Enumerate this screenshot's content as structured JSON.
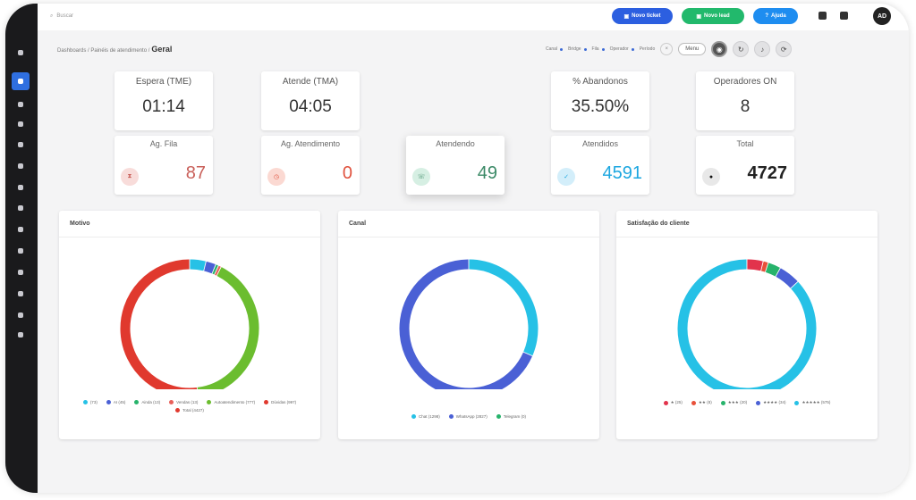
{
  "topbar": {
    "search_placeholder": "Buscar",
    "btn_new_ticket": "Novo ticket",
    "btn_new_lead": "Novo lead",
    "btn_3": "Ajuda",
    "avatar_text": "AD"
  },
  "breadcrumb": {
    "path": "Dashboards / Painéis de atendimento /",
    "current": "Geral"
  },
  "filters": {
    "items": [
      "Canal",
      "Bridge",
      "Fila",
      "Operador",
      "Período"
    ],
    "clear": "×",
    "menu": "Menu"
  },
  "kpis": [
    {
      "label": "Espera (TME)",
      "value": "01:14"
    },
    {
      "label": "Atende (TMA)",
      "value": "04:05"
    },
    {
      "label": "% Abandonos",
      "value": "35.50%"
    },
    {
      "label": "Operadores ON",
      "value": "8"
    }
  ],
  "stats": [
    {
      "label": "Ag. Fila",
      "value": "87",
      "color": "#c9605a",
      "bg": "#f8dcda",
      "icon": "hourglass-icon"
    },
    {
      "label": "Ag. Atendimento",
      "value": "0",
      "color": "#e0523e",
      "bg": "#fbd9d2",
      "icon": "clock-icon"
    },
    {
      "label": "Atendendo",
      "value": "49",
      "color": "#3c8a67",
      "bg": "#d6efe3",
      "icon": "headset-icon"
    },
    {
      "label": "Atendidos",
      "value": "4591",
      "color": "#1da7e0",
      "bg": "#d3eefa",
      "icon": "check-icon"
    },
    {
      "label": "Total",
      "value": "4727",
      "color": "#222222",
      "bg": "#e8e8e8",
      "icon": "total-icon"
    }
  ],
  "charts": [
    {
      "title": "Motivo",
      "legend": [
        "(73)",
        "AI (45)",
        "Ainda (13)",
        "Vendas (13)",
        "Autoatendimento (777)",
        "Dúvidas (997)",
        "Total (4427)"
      ]
    },
    {
      "title": "Canal",
      "legend": [
        "Chat (1298)",
        "WhatsApp (2827)",
        "Telegram (0)"
      ]
    },
    {
      "title": "Satisfação do cliente",
      "legend": [
        "★ (25)",
        "★★ (8)",
        "★★★ (20)",
        "★★★★ (34)",
        "★★★★★ (575)"
      ]
    }
  ],
  "chart_data": [
    {
      "type": "pie",
      "title": "Motivo",
      "categories": [
        "(73)",
        "AI (45)",
        "Ainda (13)",
        "Vendas (13)",
        "Autoatendimento (777)",
        "Dúvidas (997)"
      ],
      "values": [
        73,
        45,
        13,
        13,
        777,
        997
      ],
      "colors": [
        "#26c1e6",
        "#4a60d5",
        "#27b36b",
        "#e8605a",
        "#6bbd2f",
        "#e0392e"
      ]
    },
    {
      "type": "pie",
      "title": "Canal",
      "categories": [
        "Chat (1298)",
        "WhatsApp (2827)",
        "Telegram (0)"
      ],
      "values": [
        1298,
        2827,
        0
      ],
      "colors": [
        "#26c1e6",
        "#4a60d5",
        "#27b36b"
      ]
    },
    {
      "type": "pie",
      "title": "Satisfação do cliente",
      "categories": [
        "★ (25)",
        "★★ (8)",
        "★★★ (20)",
        "★★★★ (34)",
        "★★★★★ (575)"
      ],
      "values": [
        25,
        8,
        20,
        34,
        575
      ],
      "colors": [
        "#e2334c",
        "#e8503a",
        "#27b36b",
        "#4a60d5",
        "#26c1e6"
      ]
    }
  ]
}
